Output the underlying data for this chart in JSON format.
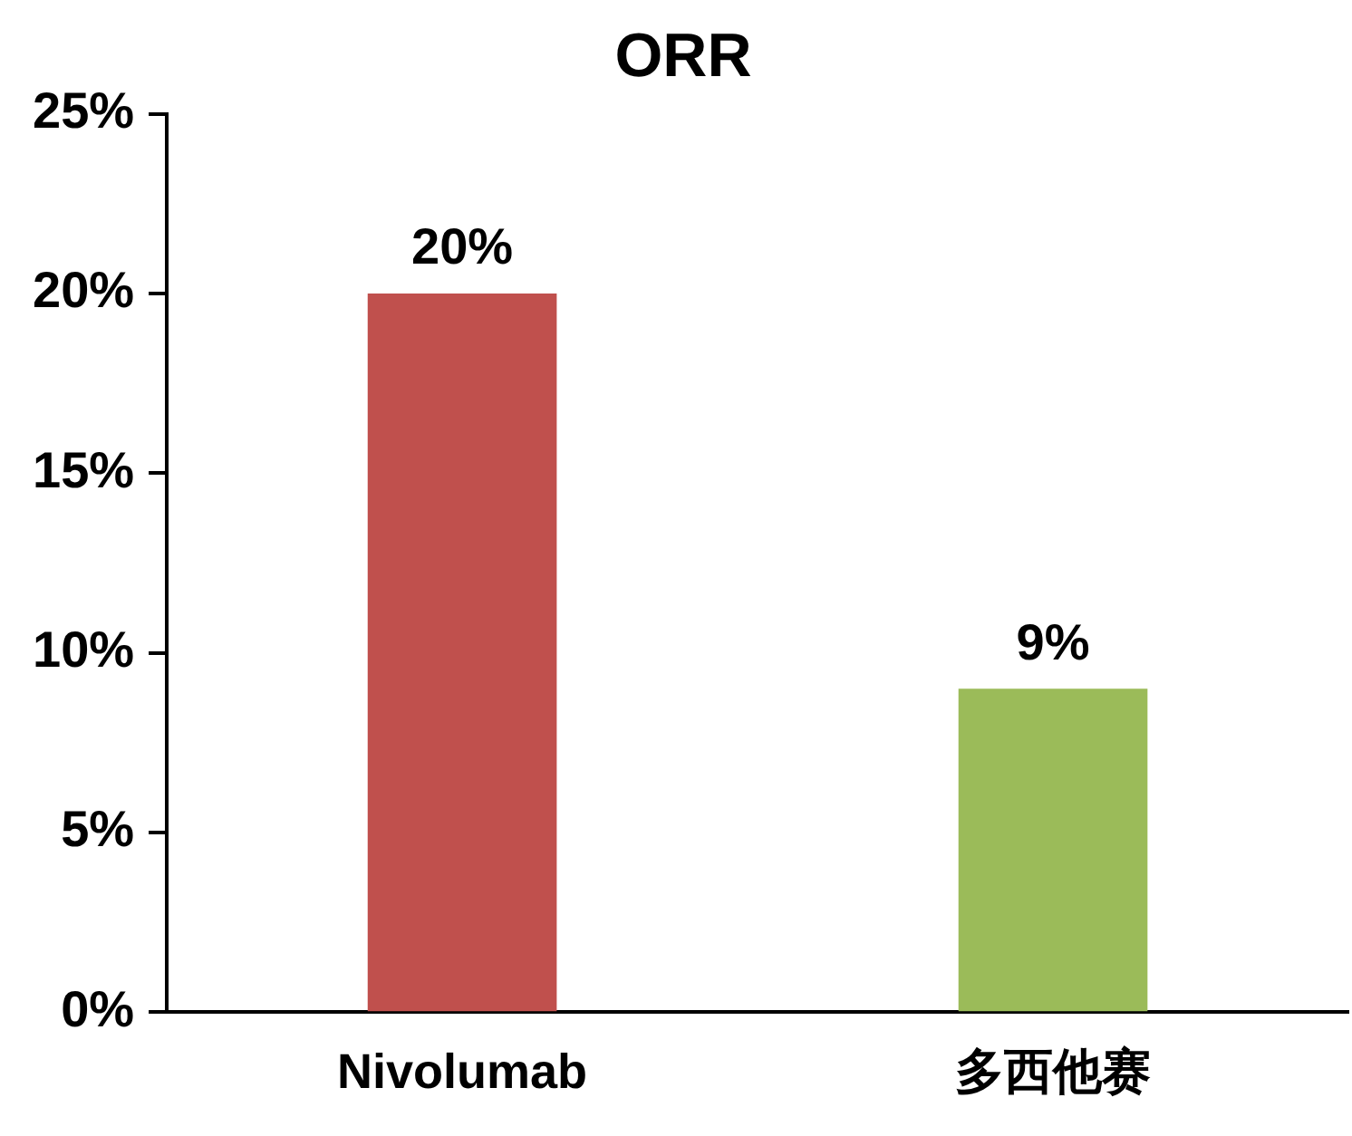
{
  "chart_data": {
    "type": "bar",
    "title": "ORR",
    "categories": [
      "Nivolumab",
      "多西他赛"
    ],
    "values": [
      20,
      9
    ],
    "colors": [
      "#c0504d",
      "#9bbb59"
    ],
    "value_labels": [
      "20%",
      "9%"
    ],
    "ylim": [
      0,
      25
    ],
    "yticks": [
      {
        "value": 0,
        "label": "0%"
      },
      {
        "value": 5,
        "label": "5%"
      },
      {
        "value": 10,
        "label": "10%"
      },
      {
        "value": 15,
        "label": "15%"
      },
      {
        "value": 20,
        "label": "20%"
      },
      {
        "value": 25,
        "label": "25%"
      }
    ],
    "grid": false
  }
}
